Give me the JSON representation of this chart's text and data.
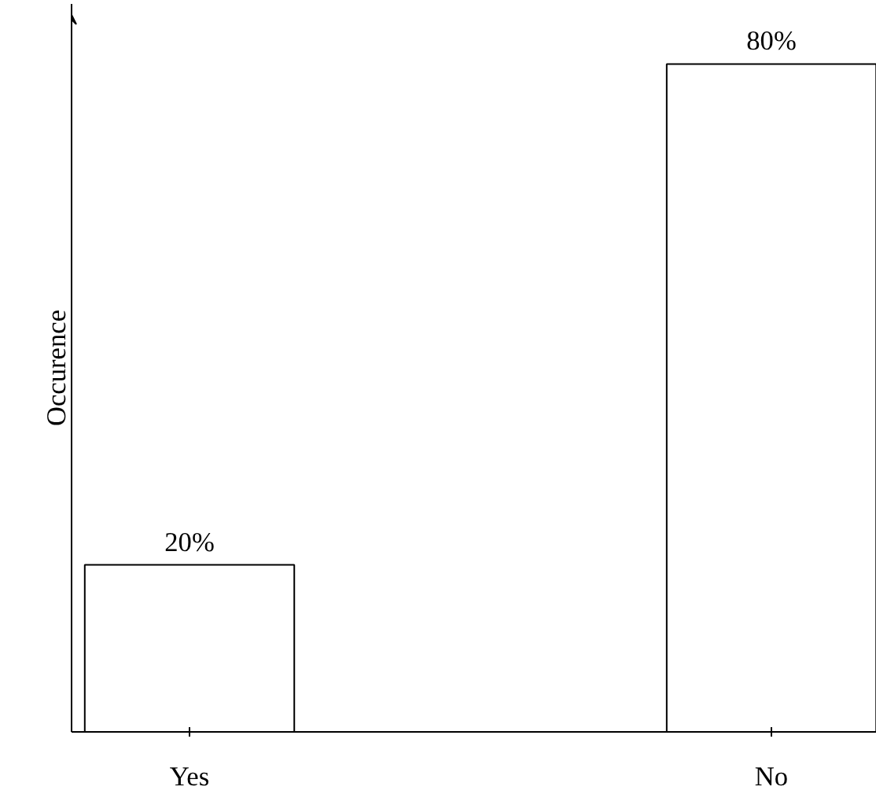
{
  "chart_data": {
    "type": "bar",
    "ylabel": "Occurence",
    "categories": [
      "Yes",
      "No"
    ],
    "values": [
      20,
      80
    ],
    "value_labels": [
      "20%",
      "80%"
    ],
    "color": "#ffffff",
    "grid": false
  }
}
